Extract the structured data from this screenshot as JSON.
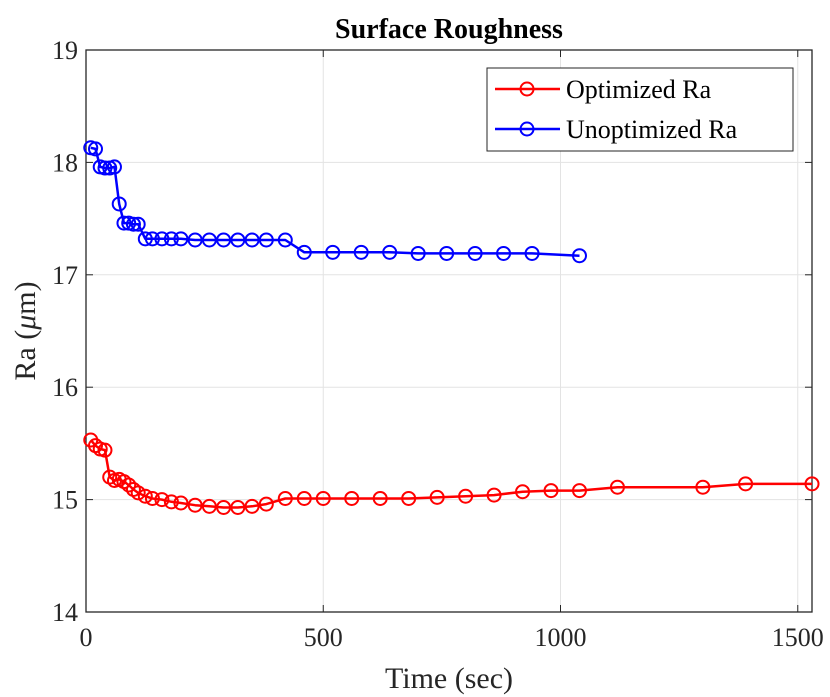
{
  "chart_data": {
    "type": "line",
    "title": "Surface Roughness",
    "xlabel": "Time (sec)",
    "ylabel_prefix": "Ra (",
    "ylabel_mu": "μ",
    "ylabel_suffix": "m)",
    "xlim": [
      0,
      1530
    ],
    "ylim": [
      14,
      19
    ],
    "xticks": [
      0,
      500,
      1000,
      1500
    ],
    "yticks": [
      14,
      15,
      16,
      17,
      18,
      19
    ],
    "grid": true,
    "legend_position": "top-right",
    "series": [
      {
        "name": "Optimized Ra",
        "color": "#ff0000",
        "marker": "circle",
        "x": [
          10,
          20,
          30,
          40,
          50,
          60,
          70,
          80,
          90,
          100,
          110,
          125,
          140,
          160,
          180,
          200,
          230,
          260,
          290,
          320,
          350,
          380,
          420,
          460,
          500,
          560,
          620,
          680,
          740,
          800,
          860,
          920,
          980,
          1040,
          1120,
          1300,
          1390,
          1530
        ],
        "y": [
          15.53,
          15.48,
          15.45,
          15.44,
          15.2,
          15.17,
          15.18,
          15.16,
          15.13,
          15.09,
          15.06,
          15.03,
          15.01,
          15.0,
          14.98,
          14.97,
          14.95,
          14.94,
          14.93,
          14.93,
          14.94,
          14.96,
          15.01,
          15.01,
          15.01,
          15.01,
          15.01,
          15.01,
          15.02,
          15.03,
          15.04,
          15.07,
          15.08,
          15.08,
          15.11,
          15.11,
          15.14,
          15.14
        ]
      },
      {
        "name": "Unoptimized Ra",
        "color": "#0000ff",
        "marker": "circle",
        "x": [
          10,
          20,
          30,
          40,
          50,
          60,
          70,
          80,
          90,
          100,
          110,
          125,
          140,
          160,
          180,
          200,
          230,
          260,
          290,
          320,
          350,
          380,
          420,
          460,
          520,
          580,
          640,
          700,
          760,
          820,
          880,
          940,
          1040
        ],
        "y": [
          18.13,
          18.12,
          17.96,
          17.95,
          17.95,
          17.96,
          17.63,
          17.46,
          17.46,
          17.45,
          17.45,
          17.32,
          17.32,
          17.32,
          17.32,
          17.32,
          17.31,
          17.31,
          17.31,
          17.31,
          17.31,
          17.31,
          17.31,
          17.2,
          17.2,
          17.2,
          17.2,
          17.19,
          17.19,
          17.19,
          17.19,
          17.19,
          17.17
        ]
      }
    ]
  }
}
